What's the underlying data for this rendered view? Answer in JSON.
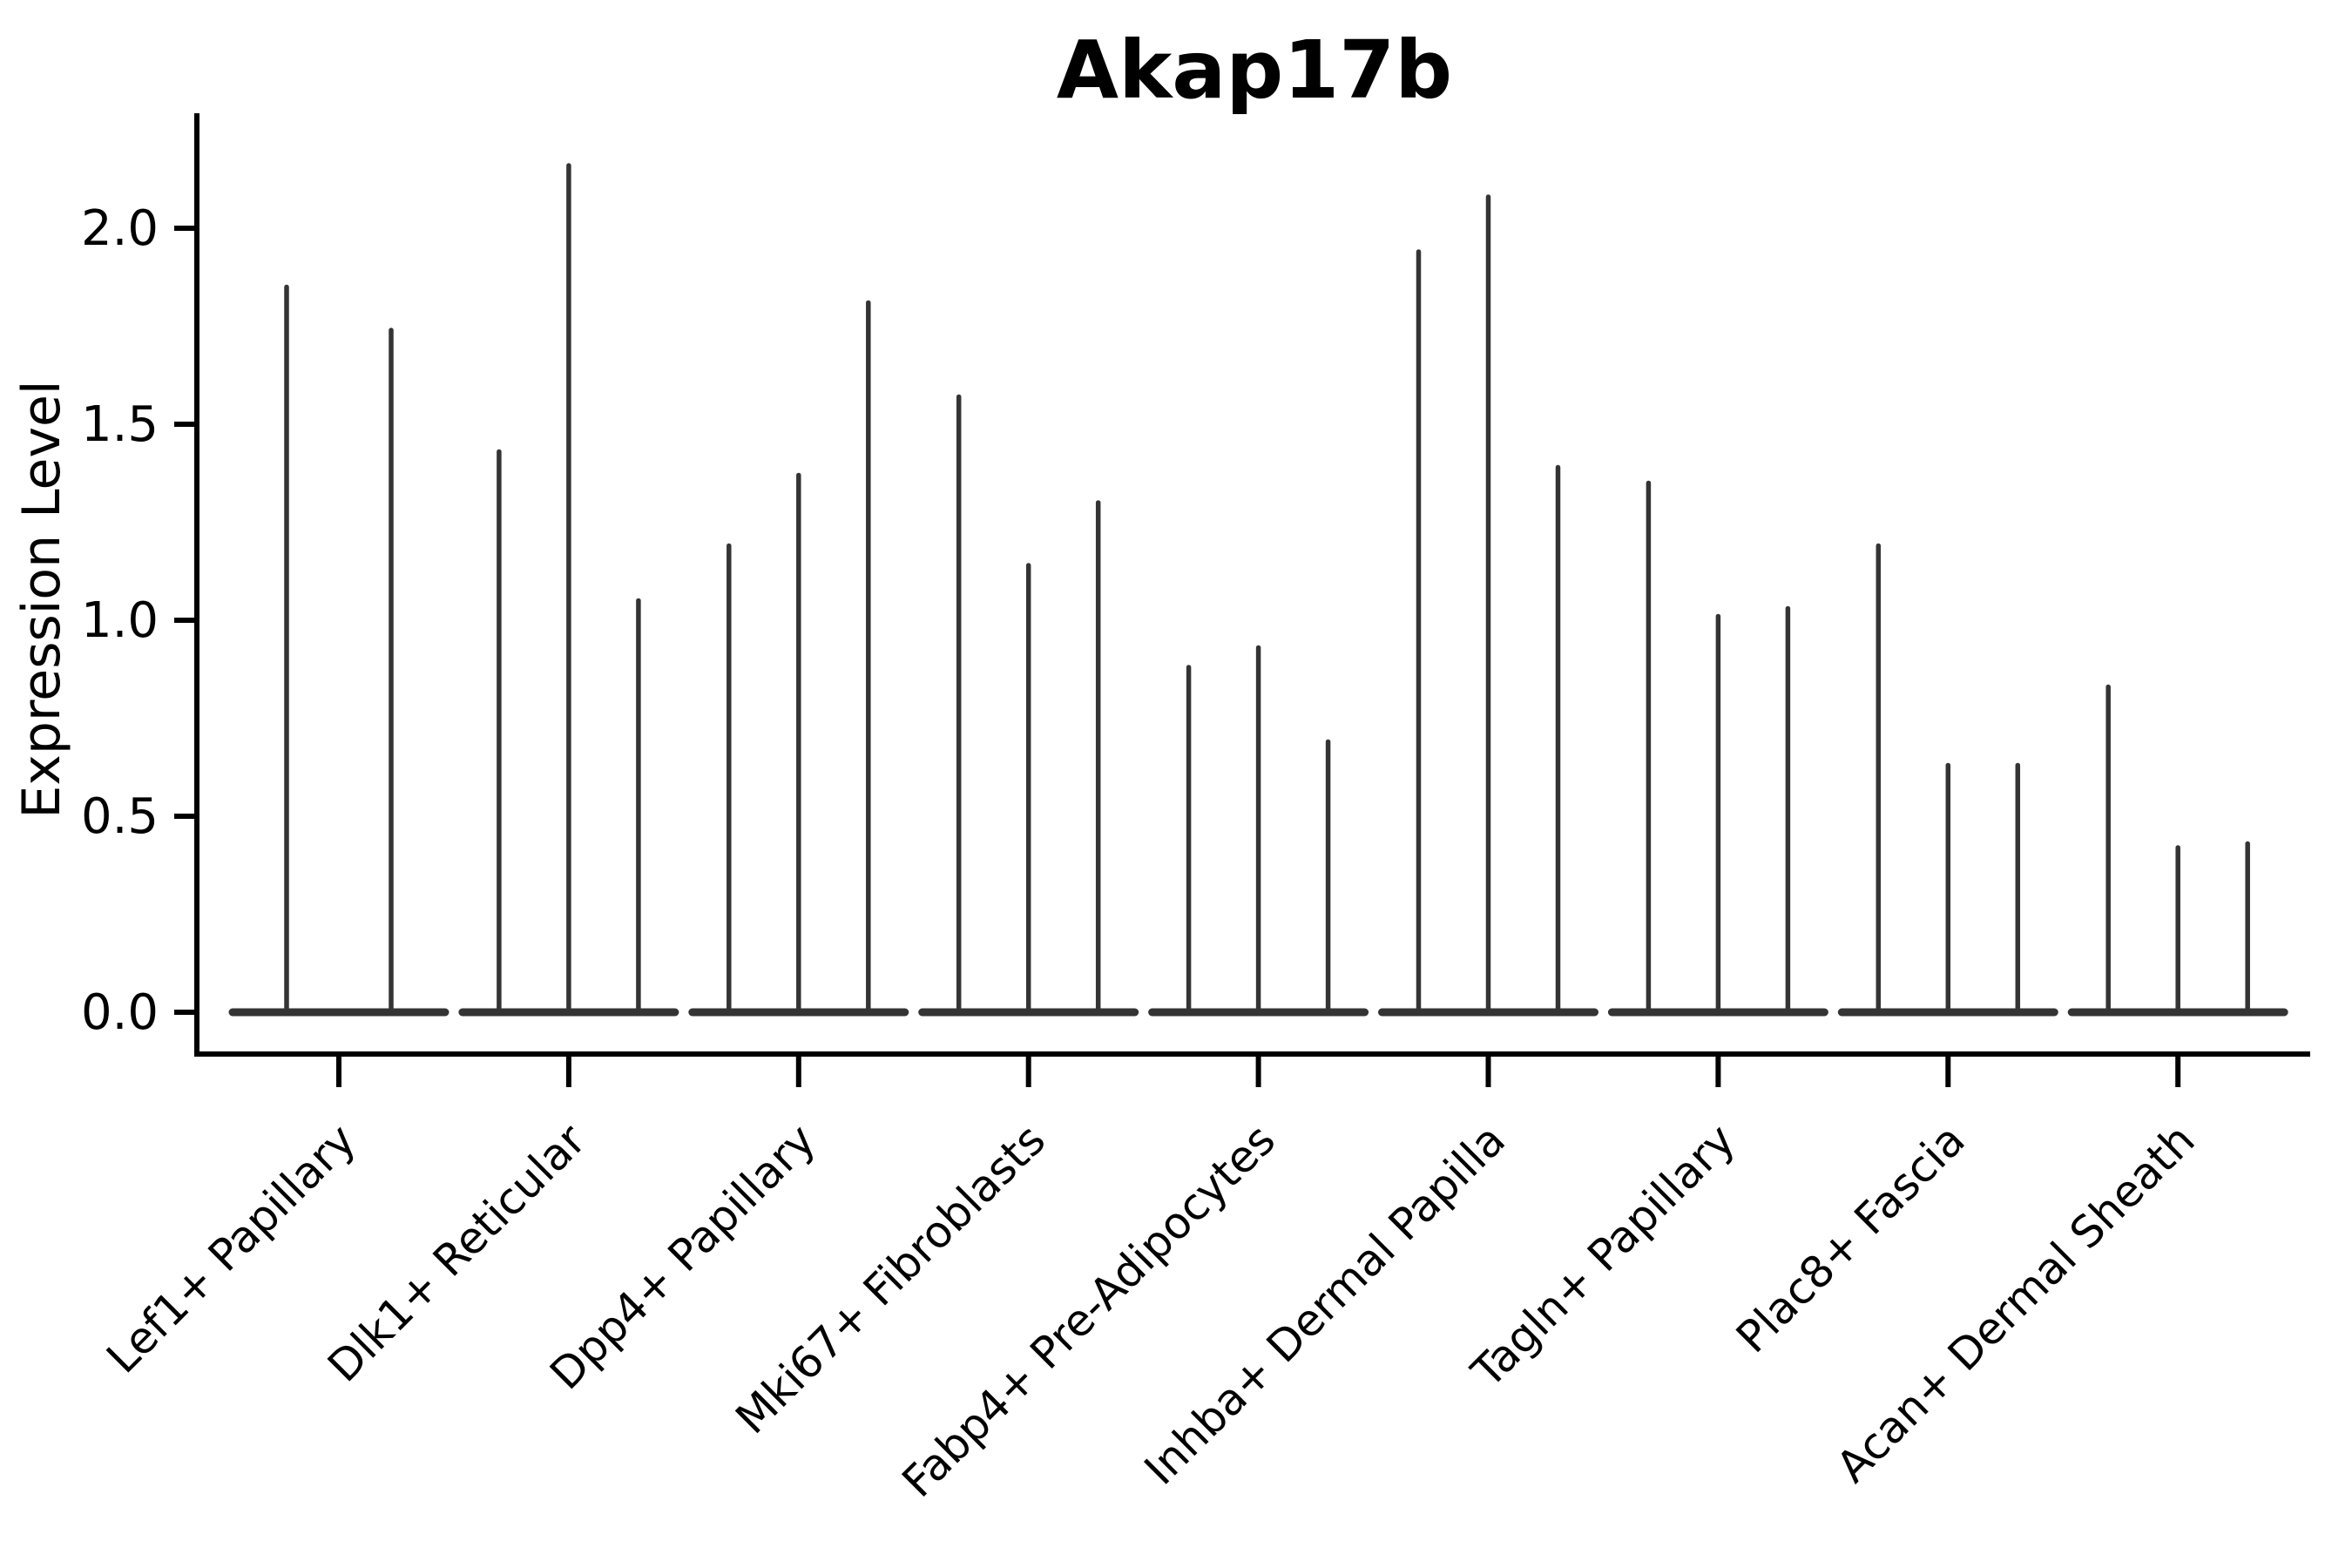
{
  "chart_data": {
    "type": "violin",
    "title": "Akap17b",
    "ylabel": "Expression Level",
    "xlabel": "",
    "ytick_labels": [
      "0.0",
      "0.5",
      "1.0",
      "1.5",
      "2.0"
    ],
    "ytick_values": [
      0.0,
      0.5,
      1.0,
      1.5,
      2.0
    ],
    "ylim": [
      -0.11,
      2.29
    ],
    "grid": false,
    "legend": "none",
    "categories": [
      "Lef1+ Papillary",
      "Dlk1+ Reticular",
      "Dpp4+ Papillary",
      "Mki67+ Fibroblasts",
      "Fabp4+ Pre-Adipocytes",
      "Inhba+ Dermal Papilla",
      "Tagln+ Papillary",
      "Plac8+ Fascia",
      "Acan+ Dermal Sheath"
    ],
    "violins": [
      {
        "category": "Lef1+ Papillary",
        "peak_expression": [
          1.85,
          1.74
        ]
      },
      {
        "category": "Dlk1+ Reticular",
        "peak_expression": [
          1.43,
          2.16,
          1.05
        ]
      },
      {
        "category": "Dpp4+ Papillary",
        "peak_expression": [
          1.19,
          1.37,
          1.81
        ]
      },
      {
        "category": "Mki67+ Fibroblasts",
        "peak_expression": [
          1.57,
          1.14,
          1.3
        ]
      },
      {
        "category": "Fabp4+ Pre-Adipocytes",
        "peak_expression": [
          0.88,
          0.93,
          0.69
        ]
      },
      {
        "category": "Inhba+ Dermal Papilla",
        "peak_expression": [
          1.94,
          2.08,
          1.39
        ]
      },
      {
        "category": "Tagln+ Papillary",
        "peak_expression": [
          1.35,
          1.01,
          1.03
        ]
      },
      {
        "category": "Plac8+ Fascia",
        "peak_expression": [
          1.19,
          0.63,
          0.63
        ]
      },
      {
        "category": "Acan+ Dermal Sheath",
        "peak_expression": [
          0.83,
          0.42,
          0.43
        ]
      }
    ],
    "style": {
      "violin_color": "#343434",
      "axis_color": "#000000",
      "background": "#ffffff"
    }
  }
}
